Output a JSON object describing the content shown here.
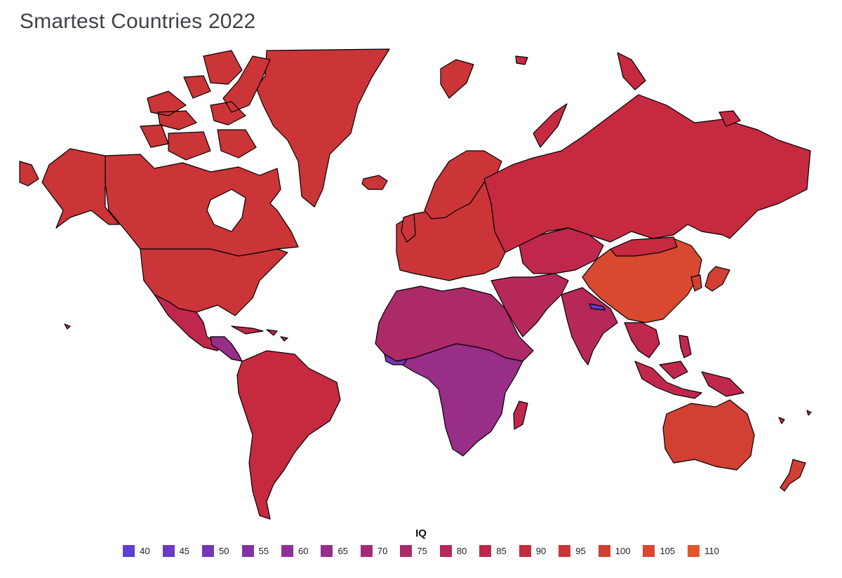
{
  "title": "Smartest Countries 2022",
  "legend": {
    "title": "IQ",
    "items": [
      {
        "label": "40",
        "color": "#5e3fd1"
      },
      {
        "label": "45",
        "color": "#6a3bc4"
      },
      {
        "label": "50",
        "color": "#7736b6"
      },
      {
        "label": "55",
        "color": "#8333a6"
      },
      {
        "label": "60",
        "color": "#8e3197"
      },
      {
        "label": "65",
        "color": "#982e88"
      },
      {
        "label": "70",
        "color": "#a32b78"
      },
      {
        "label": "75",
        "color": "#ad2a69"
      },
      {
        "label": "80",
        "color": "#b7285a"
      },
      {
        "label": "85",
        "color": "#bf284c"
      },
      {
        "label": "90",
        "color": "#c52a40"
      },
      {
        "label": "95",
        "color": "#cb3538"
      },
      {
        "label": "100",
        "color": "#d23f33"
      },
      {
        "label": "105",
        "color": "#d9492f"
      },
      {
        "label": "110",
        "color": "#e3552c"
      }
    ]
  }
}
